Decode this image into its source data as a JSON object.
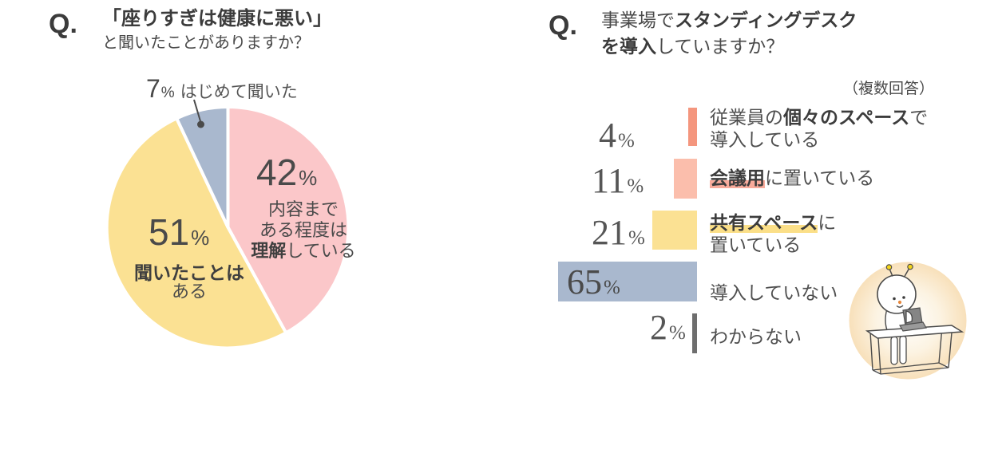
{
  "percent_sign": "%",
  "left_chart": {
    "q_label": "Q.",
    "title_line1": "「座りすぎは健康に悪い」",
    "title_line2": "と聞いたことがありますか？",
    "callout_label": "はじめて聞いた",
    "pink_desc": {
      "line1": "内容まで",
      "line2": "ある程度は",
      "line3_bold": "理解",
      "line3_rest": "している"
    },
    "yellow_desc": {
      "line1_bold": "聞いたことは",
      "line2": "ある"
    }
  },
  "right_chart": {
    "q_label": "Q.",
    "title_line1_regular": "事業場で",
    "title_line1_bold": "スタンディングデスク",
    "title_line2_bold": "を導入",
    "title_line2_regular": "していますか？",
    "note": "（複数回答）",
    "row_labels": [
      {
        "pre": "従業員の",
        "bold": "個々のスペース",
        "post": "で",
        "line2": "導入している"
      },
      {
        "pre": "",
        "bold": "会議用",
        "post": "に置いている",
        "line2": ""
      },
      {
        "pre": "",
        "bold": "共有スペース",
        "post": "に",
        "line2": "置いている"
      },
      {
        "pre": "",
        "bold": "",
        "post": "導入していない",
        "line2": ""
      },
      {
        "pre": "",
        "bold": "",
        "post": "わからない",
        "line2": ""
      }
    ]
  },
  "colors": {
    "pink": "#FBC7C9",
    "yellow": "#FBE193",
    "bluegray": "#A9B8CE",
    "salmon_dark": "#F4967E",
    "salmon_light": "#FBBEAC",
    "dark_gray_bar": "#6E6E6E",
    "text_dark": "#4a4a4a",
    "highlight_pink": "#F9AB9B",
    "highlight_yellow": "#FBDF88"
  },
  "chart_data": [
    {
      "type": "pie",
      "title": "「座りすぎは健康に悪い」と聞いたことがありますか？",
      "start": "top",
      "direction": "clockwise",
      "slices": [
        {
          "name": "understand",
          "label": "内容まである程度は理解している",
          "value": 42,
          "color": "#FBC7C9"
        },
        {
          "name": "heard",
          "label": "聞いたことはある",
          "value": 51,
          "color": "#FBE193"
        },
        {
          "name": "first-time",
          "label": "はじめて聞いた",
          "value": 7,
          "color": "#A9B8CE"
        }
      ]
    },
    {
      "type": "bar",
      "title": "事業場でスタンディングデスクを導入していますか？（複数回答）",
      "orientation": "horizontal",
      "bar_alignment": "right",
      "categories": [
        "従業員の個々のスペースで導入している",
        "会議用に置いている",
        "共有スペースに置いている",
        "導入していない",
        "わからない"
      ],
      "values": [
        4,
        11,
        21,
        65,
        2
      ],
      "colors": [
        "#F4967E",
        "#FBBEAC",
        "#FBE193",
        "#A9B8CE",
        "#6E6E6E"
      ],
      "xlim": [
        0,
        65
      ]
    }
  ]
}
